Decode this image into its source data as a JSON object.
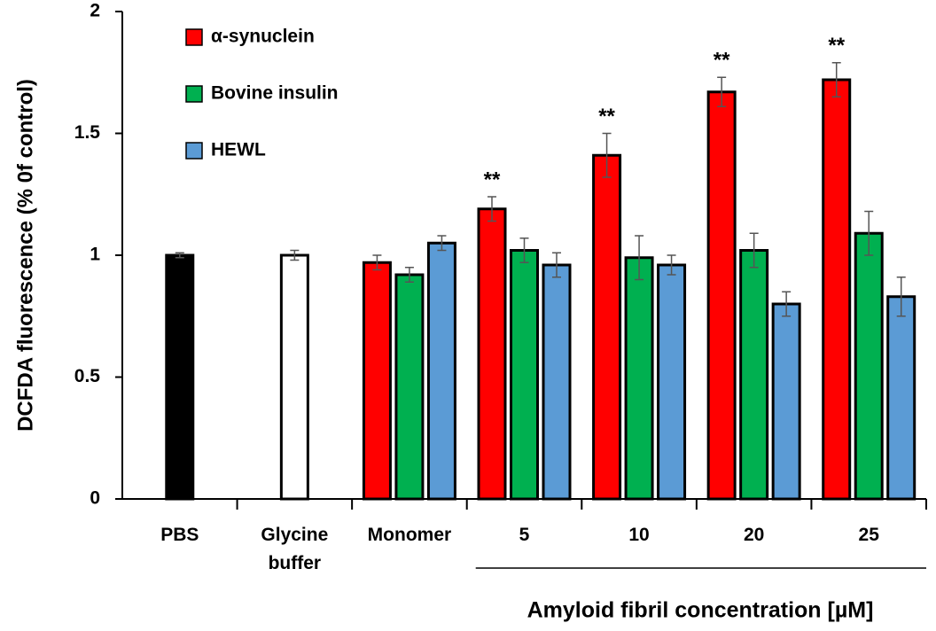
{
  "chart_data": {
    "type": "bar",
    "y_label": "DCFDA fluorescence (% 0f control)",
    "x_label": "Amyloid fibril concentration [µM]",
    "categories": [
      "PBS",
      "Glycine buffer",
      "Monomer",
      "5",
      "10",
      "20",
      "25"
    ],
    "ylim": [
      0,
      2
    ],
    "yticks": [
      0,
      0.5,
      1,
      1.5,
      2
    ],
    "series": [
      {
        "color": "#000000",
        "values": [
          1.0,
          null,
          null,
          null,
          null,
          null,
          null
        ],
        "errors": [
          0.01,
          null,
          null,
          null,
          null,
          null,
          null
        ]
      },
      {
        "color": "#ffffff",
        "values": [
          null,
          1.0,
          null,
          null,
          null,
          null,
          null
        ],
        "errors": [
          null,
          0.02,
          null,
          null,
          null,
          null,
          null
        ]
      },
      {
        "name": "α-synuclein",
        "color": "#ff0000",
        "values": [
          null,
          null,
          0.97,
          1.19,
          1.41,
          1.67,
          1.72
        ],
        "errors": [
          null,
          null,
          0.03,
          0.05,
          0.09,
          0.06,
          0.07
        ],
        "markers": [
          null,
          null,
          null,
          "**",
          "**",
          "**",
          "**"
        ]
      },
      {
        "name": "Bovine insulin",
        "color": "#00b050",
        "values": [
          null,
          null,
          0.92,
          1.02,
          0.99,
          1.02,
          1.09
        ],
        "errors": [
          null,
          null,
          0.03,
          0.05,
          0.09,
          0.07,
          0.09
        ]
      },
      {
        "name": "HEWL",
        "color": "#5b9bd5",
        "values": [
          null,
          null,
          1.05,
          0.96,
          0.96,
          0.8,
          0.83
        ],
        "errors": [
          null,
          null,
          0.03,
          0.05,
          0.04,
          0.05,
          0.08
        ]
      }
    ]
  }
}
